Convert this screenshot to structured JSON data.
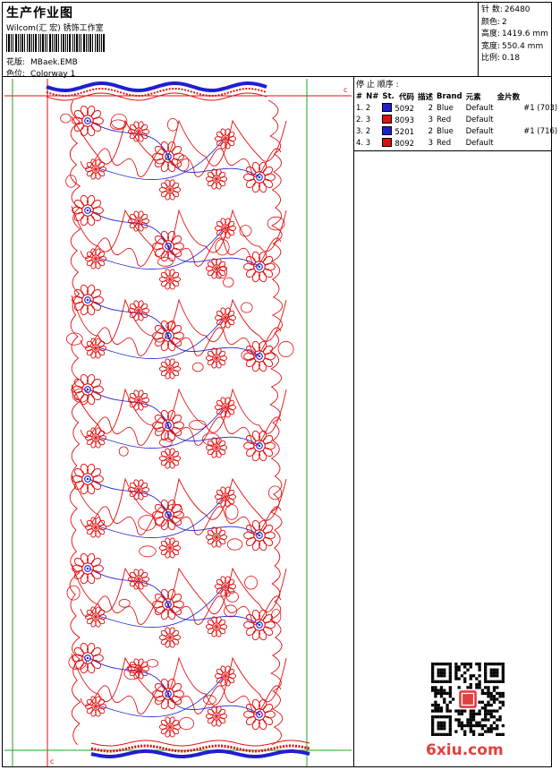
{
  "header": {
    "title": "生产作业图",
    "company": "Wilcom(汇 宏) 锈饰工作室",
    "barcode_label": "barcode",
    "design_label": "花版:",
    "design_value": "MBaek.EMB",
    "color_label": "色位:",
    "color_value": "Colorway 1"
  },
  "specs": [
    {
      "label": "针 数:",
      "value": "26480"
    },
    {
      "label": "颜色:",
      "value": "2"
    },
    {
      "label": "高度:",
      "value": "1419.6 mm"
    },
    {
      "label": "宽度:",
      "value": "550.4 mm"
    },
    {
      "label": "比例:",
      "value": "0.18"
    }
  ],
  "stops": {
    "title": "停 止 顺序 :",
    "headers": [
      "#",
      "N#",
      "St.",
      "代码",
      "描述",
      "Brand",
      "元素",
      "金片数"
    ],
    "rows": [
      {
        "n": "1. 2",
        "code": "5092",
        "st": "2",
        "desc": "Blue",
        "brand": "Default",
        "elem": "",
        "seq": "#1 (703)",
        "color": "#1f1fd0"
      },
      {
        "n": "2. 3",
        "code": "8093",
        "st": "3",
        "desc": "Red",
        "brand": "Default",
        "elem": "",
        "seq": "",
        "color": "#e01010"
      },
      {
        "n": "3. 2",
        "code": "5201",
        "st": "2",
        "desc": "Blue",
        "brand": "Default",
        "elem": "",
        "seq": "#1 (716)",
        "color": "#1f1fd0"
      },
      {
        "n": "4. 3",
        "code": "8092",
        "st": "3",
        "desc": "Red",
        "brand": "Default",
        "elem": "",
        "seq": "",
        "color": "#e01010"
      }
    ]
  },
  "design": {
    "marker_top": "c",
    "marker_bottom": "c",
    "thread_red": "#e01010",
    "thread_blue": "#1f1fd0",
    "guide_green": "#1ea51e"
  },
  "watermark": {
    "text": "6xiu.com",
    "qr_label": "qr-code"
  }
}
